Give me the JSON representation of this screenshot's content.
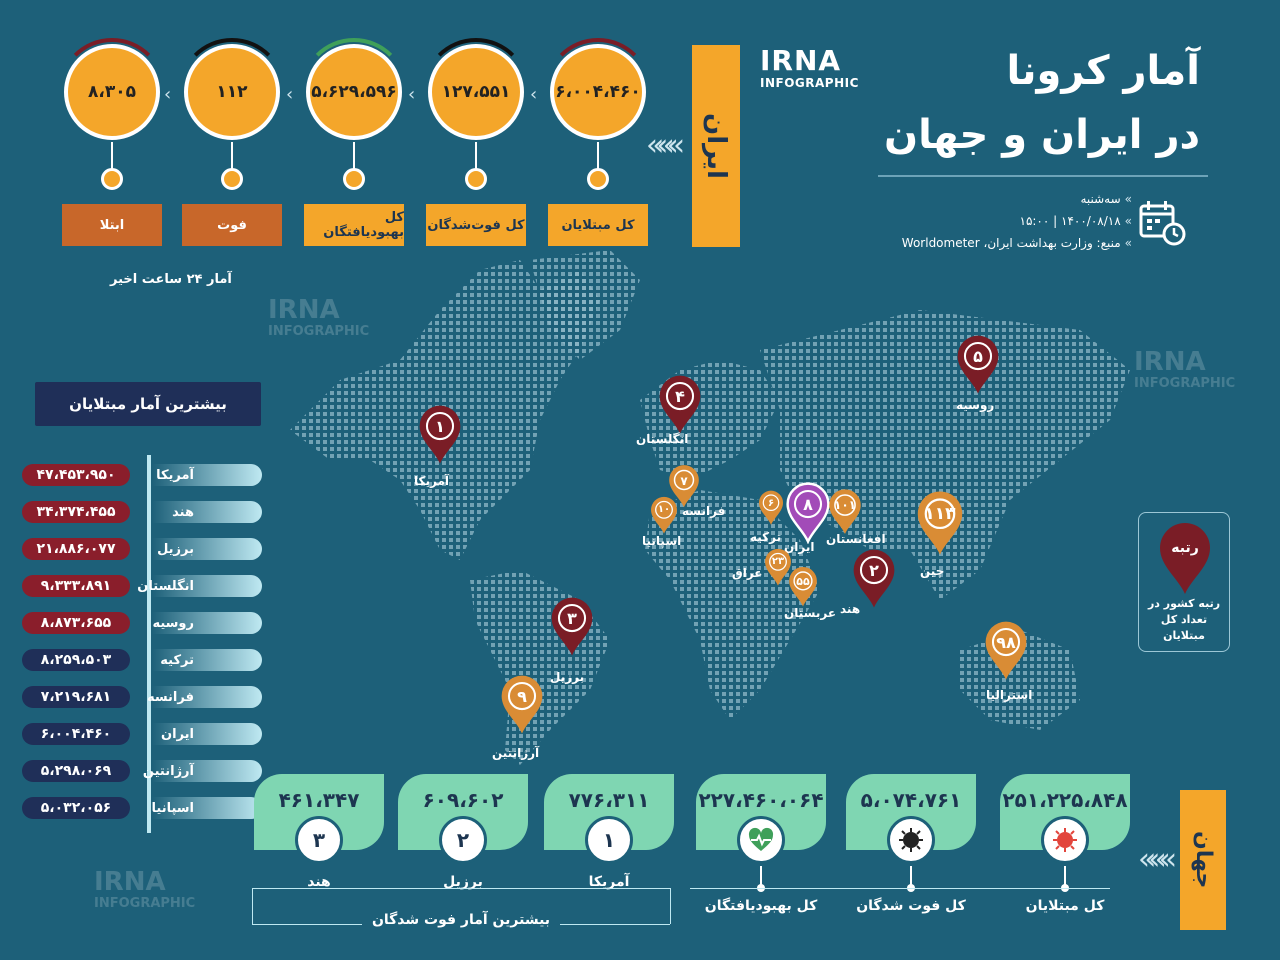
{
  "header": {
    "title_line1": "آمار کرونا",
    "title_line2": "در ایران و جهان",
    "logo_main": "IRNA",
    "logo_sub": "INFOGRAPHIC",
    "day": "سه‌شنبه",
    "datetime": "۱۴۰۰/۰۸/۱۸   |   ۱۵:۰۰",
    "source": "منبع: وزارت بهداشت ایران، Worldometer"
  },
  "iran": {
    "label": "ایران",
    "note": "آمار ۲۴ ساعت اخیر",
    "stats": [
      {
        "label": "کل مبتلایان",
        "value": "۶،۰۰۴،۴۶۰"
      },
      {
        "label": "کل فوت‌شدگان",
        "value": "۱۲۷،۵۵۱"
      },
      {
        "label": "کل بهبودیافتگان",
        "value": "۵،۶۲۹،۵۹۶"
      },
      {
        "label": "فوت",
        "value": "۱۱۲"
      },
      {
        "label": "ابتلا",
        "value": "۸،۳۰۵"
      }
    ]
  },
  "ranking": {
    "title": "بیشترین آمار مبتلایان",
    "rows": [
      {
        "country": "آمریکا",
        "value": "۴۷،۴۵۳،۹۵۰",
        "color": "#8a1e2b"
      },
      {
        "country": "هند",
        "value": "۳۴،۳۷۴،۴۵۵",
        "color": "#8a1e2b"
      },
      {
        "country": "برزیل",
        "value": "۲۱،۸۸۶،۰۷۷",
        "color": "#8a1e2b"
      },
      {
        "country": "انگلستان",
        "value": "۹،۳۳۳،۸۹۱",
        "color": "#8a1e2b"
      },
      {
        "country": "روسیه",
        "value": "۸،۸۷۳،۶۵۵",
        "color": "#8a1e2b"
      },
      {
        "country": "ترکیه",
        "value": "۸،۲۵۹،۵۰۳",
        "color": "#1f2f58"
      },
      {
        "country": "فرانسه",
        "value": "۷،۲۱۹،۶۸۱",
        "color": "#1f2f58"
      },
      {
        "country": "ایران",
        "value": "۶،۰۰۴،۴۶۰",
        "color": "#1f2f58"
      },
      {
        "country": "آرژانتین",
        "value": "۵،۲۹۸،۰۶۹",
        "color": "#1f2f58"
      },
      {
        "country": "اسپانیا",
        "value": "۵،۰۳۲،۰۵۶",
        "color": "#1f2f58"
      }
    ]
  },
  "map_pins": [
    {
      "rank": "۱",
      "country": "آمریکا",
      "color": "#7a1d26"
    },
    {
      "rank": "۲",
      "country": "هند",
      "color": "#7a1d26"
    },
    {
      "rank": "۳",
      "country": "برزیل",
      "color": "#7a1d26"
    },
    {
      "rank": "۴",
      "country": "انگلستان",
      "color": "#7a1d26"
    },
    {
      "rank": "۵",
      "country": "روسیه",
      "color": "#7a1d26"
    },
    {
      "rank": "۶",
      "country": "ترکیه",
      "color": "#d98c35"
    },
    {
      "rank": "۷",
      "country": "فرانسه",
      "color": "#d98c35"
    },
    {
      "rank": "۸",
      "country": "ایران",
      "color": "#a24bb8"
    },
    {
      "rank": "۹",
      "country": "آرژانتین",
      "color": "#d98c35"
    },
    {
      "rank": "۱۰",
      "country": "اسپانیا",
      "color": "#d98c35"
    },
    {
      "rank": "۲۳",
      "country": "عراق",
      "color": "#d98c35"
    },
    {
      "rank": "۵۵",
      "country": "عربستان",
      "color": "#d98c35"
    },
    {
      "rank": "۹۸",
      "country": "استرالیا",
      "color": "#d98c35"
    },
    {
      "rank": "۱۰۱",
      "country": "افغانستان",
      "color": "#d98c35"
    },
    {
      "rank": "۱۱۳",
      "country": "چین",
      "color": "#d98c35"
    }
  ],
  "legend": {
    "pin_text": "رتبه",
    "text": "رتبه کشور در تعداد کل مبتلایان"
  },
  "world": {
    "label": "جهان",
    "stats": [
      {
        "label": "کل مبتلایان",
        "value": "۲۵۱،۲۲۵،۸۴۸",
        "icon": "virus-icon"
      },
      {
        "label": "کل فوت شدگان",
        "value": "۵،۰۷۴،۷۶۱",
        "icon": "dark-virus-icon"
      },
      {
        "label": "کل بهبودیافتگان",
        "value": "۲۲۷،۴۶۰،۰۶۴",
        "icon": "heart-pulse-icon"
      }
    ],
    "deaths_title": "بیشترین آمار فوت شدگان",
    "deaths": [
      {
        "country": "آمریکا",
        "rank": "۱",
        "value": "۷۷۶،۳۱۱"
      },
      {
        "country": "برزیل",
        "rank": "۲",
        "value": "۶۰۹،۶۰۲"
      },
      {
        "country": "هند",
        "rank": "۳",
        "value": "۴۶۱،۳۴۷"
      }
    ]
  }
}
